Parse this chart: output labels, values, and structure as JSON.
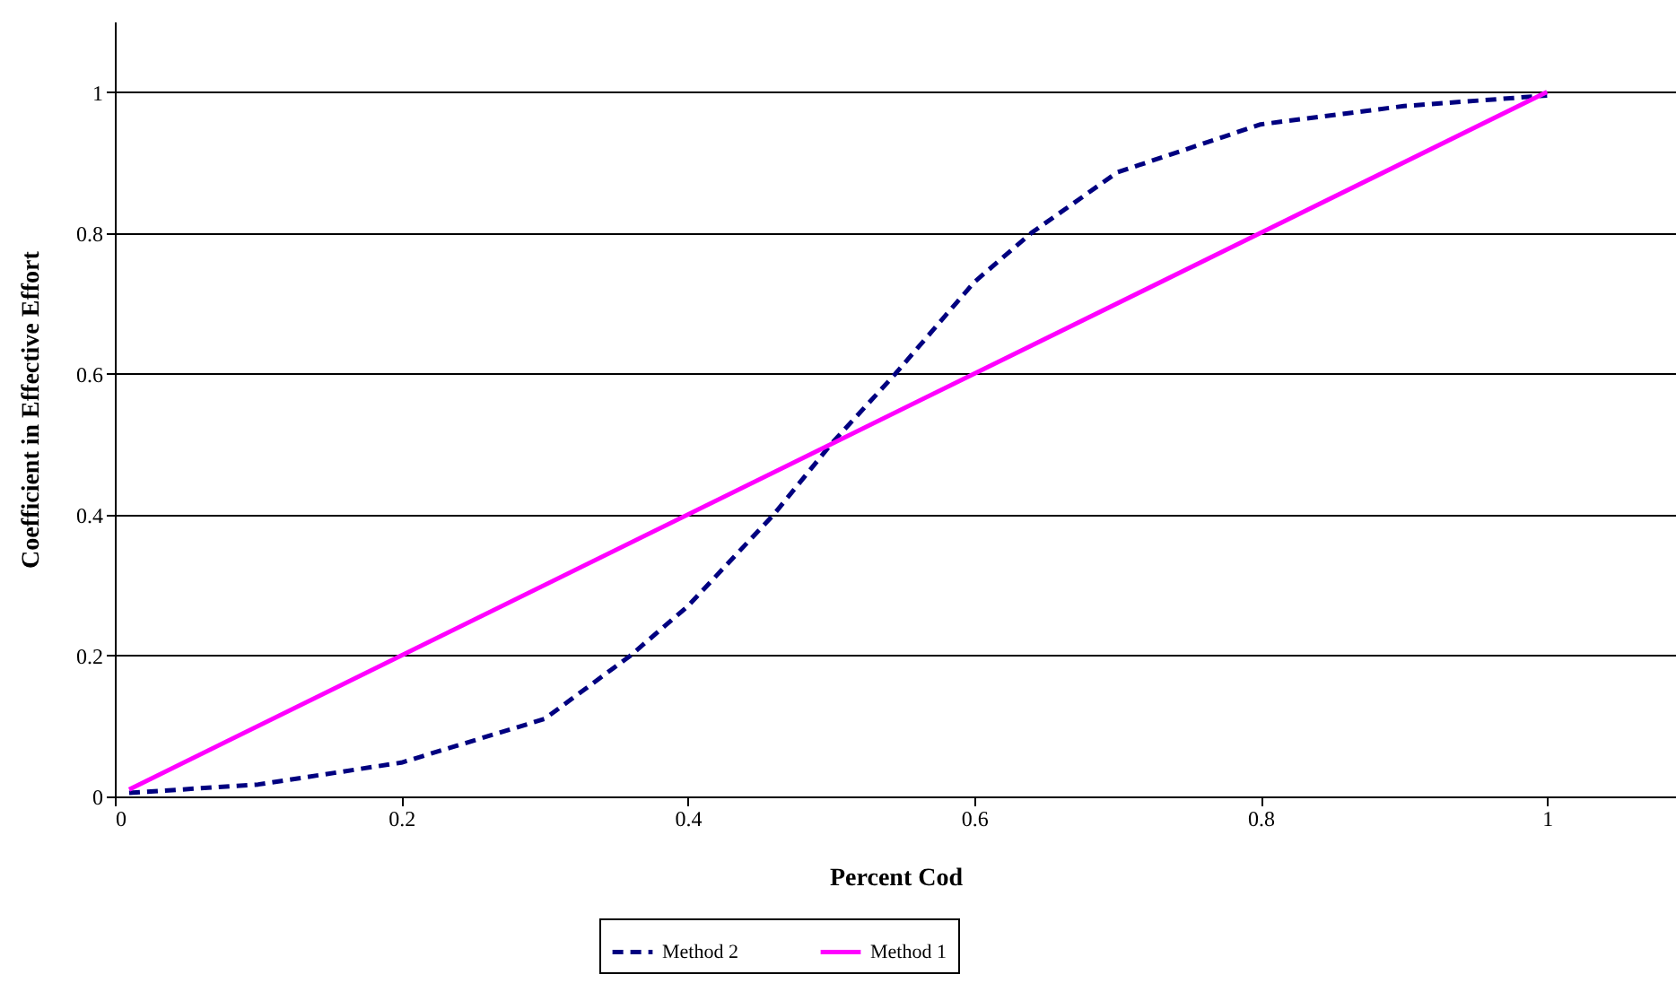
{
  "chart_data": {
    "type": "line",
    "xlabel": "Percent Cod",
    "ylabel": "Coefficient in Effective Effort",
    "xlim": [
      0,
      1.09
    ],
    "ylim": [
      0,
      1.1
    ],
    "xticks": [
      0,
      0.2,
      0.4,
      0.6,
      0.8,
      1
    ],
    "yticks": [
      0,
      0.2,
      0.4,
      0.6,
      0.8,
      1
    ],
    "grid": "y",
    "legend": "bottom",
    "marker": "none",
    "series": [
      {
        "name": "Method 2",
        "color": "#000080",
        "line_style": "dashed",
        "x": [
          0.01,
          0.1,
          0.2,
          0.3,
          0.36,
          0.4,
          0.46,
          0.5,
          0.545,
          0.6,
          0.64,
          0.7,
          0.8,
          0.9,
          1
        ],
        "values": [
          0.005,
          0.017,
          0.048,
          0.11,
          0.2,
          0.27,
          0.4,
          0.5,
          0.6,
          0.73,
          0.8,
          0.886,
          0.954,
          0.98,
          0.995
        ]
      },
      {
        "name": "Method 1",
        "color": "#ff00ff",
        "line_style": "solid",
        "x": [
          0.01,
          1
        ],
        "values": [
          0.01,
          1
        ]
      }
    ]
  }
}
